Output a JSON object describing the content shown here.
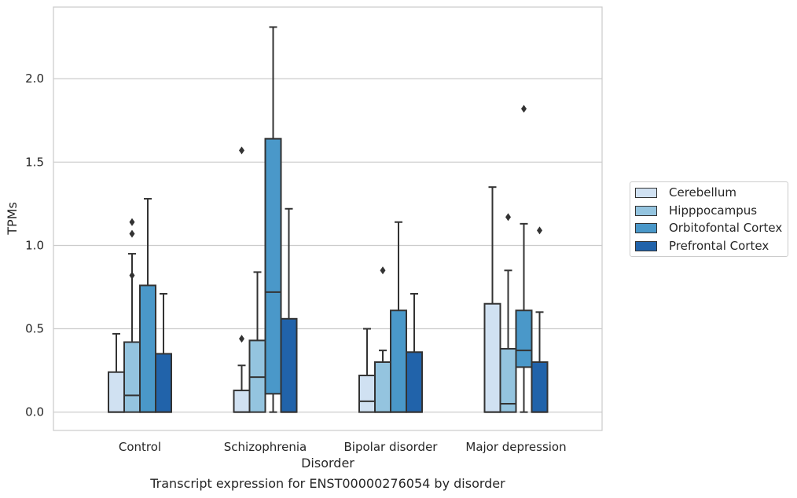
{
  "caption": "Transcript expression for ENST00000276054 by disorder",
  "chart_data": {
    "type": "box",
    "title": "",
    "xlabel": "Disorder",
    "ylabel": "TPMs",
    "ylim": [
      -0.11,
      2.43
    ],
    "yticks": [
      "0.0",
      "0.5",
      "1.0",
      "1.5",
      "2.0"
    ],
    "grid": true,
    "legend_position": "right",
    "categories": [
      "Control",
      "Schizophrenia",
      "Bipolar disorder",
      "Major depression"
    ],
    "series": [
      {
        "name": "Cerebellum",
        "color": "#d0e1f2",
        "boxes": [
          {
            "whislo": 0.0,
            "q1": 0.0,
            "med": 0.0,
            "q3": 0.24,
            "whishi": 0.47,
            "fliers": []
          },
          {
            "whislo": 0.0,
            "q1": 0.0,
            "med": 0.0,
            "q3": 0.13,
            "whishi": 0.28,
            "fliers": [
              0.44,
              1.57
            ]
          },
          {
            "whislo": 0.0,
            "q1": 0.0,
            "med": 0.065,
            "q3": 0.22,
            "whishi": 0.5,
            "fliers": []
          },
          {
            "whislo": 0.0,
            "q1": 0.0,
            "med": 0.0,
            "q3": 0.65,
            "whishi": 1.35,
            "fliers": []
          }
        ]
      },
      {
        "name": "Hipppocampus",
        "color": "#94c4df",
        "boxes": [
          {
            "whislo": 0.0,
            "q1": 0.0,
            "med": 0.1,
            "q3": 0.42,
            "whishi": 0.95,
            "fliers": [
              0.82,
              1.07,
              1.14
            ]
          },
          {
            "whislo": 0.0,
            "q1": 0.0,
            "med": 0.21,
            "q3": 0.43,
            "whishi": 0.84,
            "fliers": []
          },
          {
            "whislo": 0.0,
            "q1": 0.0,
            "med": 0.0,
            "q3": 0.3,
            "whishi": 0.37,
            "fliers": [
              0.85
            ]
          },
          {
            "whislo": 0.0,
            "q1": 0.0,
            "med": 0.05,
            "q3": 0.38,
            "whishi": 0.85,
            "fliers": [
              1.17
            ]
          }
        ]
      },
      {
        "name": "Orbitofontal Cortex",
        "color": "#4a98c9",
        "boxes": [
          {
            "whislo": 0.0,
            "q1": 0.0,
            "med": 0.0,
            "q3": 0.76,
            "whishi": 1.28,
            "fliers": []
          },
          {
            "whislo": 0.0,
            "q1": 0.11,
            "med": 0.72,
            "q3": 1.64,
            "whishi": 2.31,
            "fliers": []
          },
          {
            "whislo": 0.0,
            "q1": 0.0,
            "med": 0.0,
            "q3": 0.61,
            "whishi": 1.14,
            "fliers": []
          },
          {
            "whislo": 0.0,
            "q1": 0.27,
            "med": 0.37,
            "q3": 0.61,
            "whishi": 1.13,
            "fliers": [
              1.82
            ]
          }
        ]
      },
      {
        "name": "Prefrontal Cortex",
        "color": "#2163aa",
        "boxes": [
          {
            "whislo": 0.0,
            "q1": 0.0,
            "med": 0.0,
            "q3": 0.35,
            "whishi": 0.71,
            "fliers": []
          },
          {
            "whislo": 0.0,
            "q1": 0.0,
            "med": 0.0,
            "q3": 0.56,
            "whishi": 1.22,
            "fliers": []
          },
          {
            "whislo": 0.0,
            "q1": 0.0,
            "med": 0.0,
            "q3": 0.36,
            "whishi": 0.71,
            "fliers": []
          },
          {
            "whislo": 0.0,
            "q1": 0.0,
            "med": 0.0,
            "q3": 0.3,
            "whishi": 0.6,
            "fliers": [
              1.09
            ]
          }
        ]
      }
    ]
  }
}
